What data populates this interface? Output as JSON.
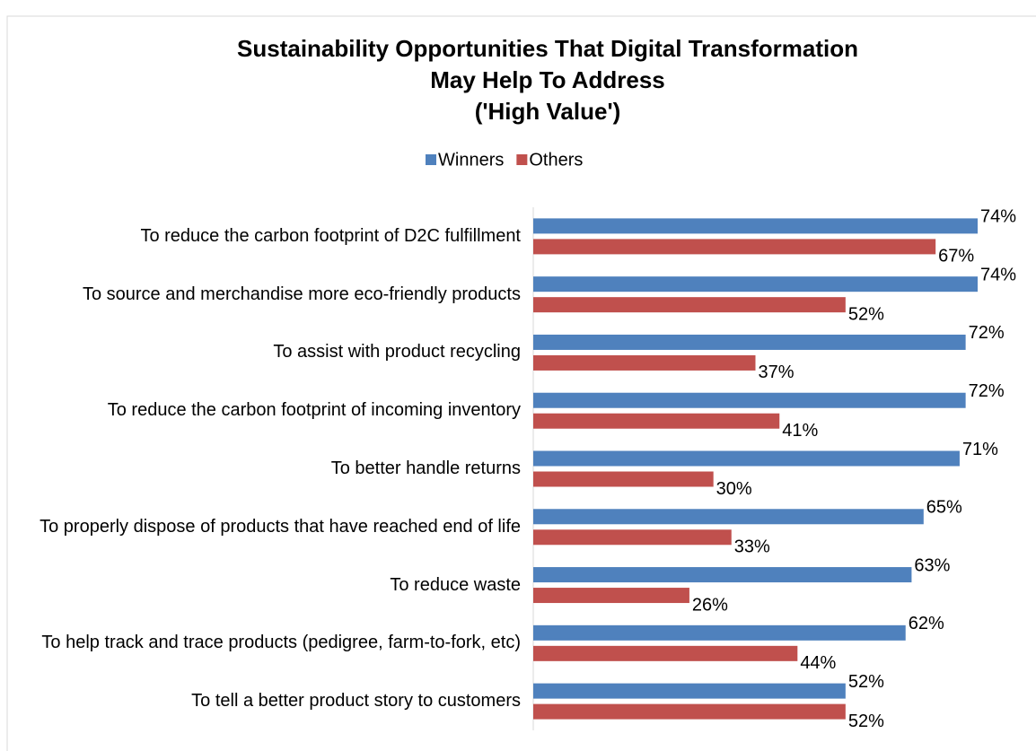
{
  "chart_data": {
    "type": "barh",
    "title": [
      "Sustainability Opportunities That Digital Transformation",
      "May Help To Address",
      "('High Value')"
    ],
    "categories": [
      "To reduce the carbon footprint of D2C fulfillment",
      "To source and merchandise more eco-friendly products",
      "To assist with product recycling",
      "To reduce the carbon footprint of incoming inventory",
      "To better handle returns",
      "To properly dispose of products that have reached end of life",
      "To reduce waste",
      "To help track and trace products (pedigree, farm-to-fork, etc)",
      "To tell a better product story to customers"
    ],
    "series": [
      {
        "name": "Winners",
        "color": "#4f81bd",
        "values": [
          74,
          74,
          72,
          72,
          71,
          65,
          63,
          62,
          52
        ],
        "value_labels": [
          "74%",
          "74%",
          "72%",
          "72%",
          "71%",
          "65%",
          "63%",
          "62%",
          "52%"
        ]
      },
      {
        "name": "Others",
        "color": "#c0504d",
        "values": [
          67,
          52,
          37,
          41,
          30,
          33,
          26,
          44,
          52
        ],
        "value_labels": [
          "67%",
          "52%",
          "37%",
          "41%",
          "30%",
          "33%",
          "26%",
          "44%",
          "52%"
        ]
      }
    ],
    "legend": "top"
  }
}
